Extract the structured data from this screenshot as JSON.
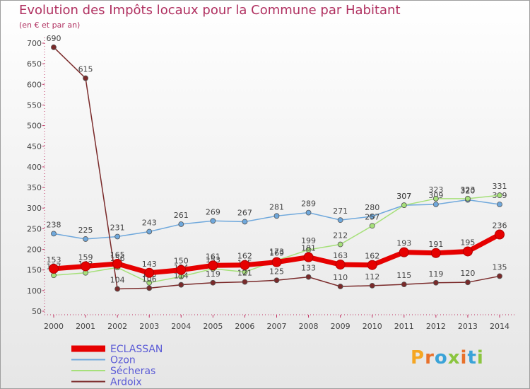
{
  "page": {
    "title": "Evolution des Impôts locaux pour la Commune par Habitant",
    "subtitle": "(en € et par an)"
  },
  "logo": {
    "letters": [
      "P",
      "r",
      "o",
      "x",
      "i",
      "t",
      "i"
    ],
    "colors": [
      "#f5a623",
      "#e8712b",
      "#3aa3d8",
      "#8bc53f",
      "#e8712b",
      "#3aa3d8",
      "#8bc53f"
    ]
  },
  "chart_data": {
    "type": "line",
    "title": "Evolution des Impôts locaux pour la Commune par Habitant",
    "subtitle": "(en € et par an)",
    "xlabel": "",
    "ylabel": "",
    "categories": [
      "2000",
      "2001",
      "2002",
      "2003",
      "2004",
      "2005",
      "2006",
      "2007",
      "2008",
      "2009",
      "2010",
      "2011",
      "2012",
      "2013",
      "2014"
    ],
    "ylim": [
      50,
      700
    ],
    "yticks": [
      50,
      100,
      150,
      200,
      250,
      300,
      350,
      400,
      450,
      500,
      550,
      600,
      650,
      700
    ],
    "grid": false,
    "legend_position": "bottom-left",
    "series": [
      {
        "name": "ECLASSAN",
        "color": "#ff0000",
        "label_color": "#444444",
        "emphasis": true,
        "values": [
          153,
          159,
          165,
          143,
          150,
          161,
          162,
          169,
          181,
          163,
          162,
          193,
          191,
          195,
          236
        ]
      },
      {
        "name": "Ozon",
        "color": "#6fa8dc",
        "label_color": "#444444",
        "emphasis": false,
        "values": [
          238,
          225,
          231,
          243,
          261,
          269,
          267,
          281,
          289,
          271,
          280,
          307,
          309,
          320,
          309
        ]
      },
      {
        "name": "Sécheras",
        "color": "#a6e07a",
        "label_color": "#444444",
        "emphasis": false,
        "values": [
          137,
          143,
          156,
          119,
          134,
          153,
          145,
          173,
          199,
          212,
          257,
          307,
          323,
          323,
          331
        ]
      },
      {
        "name": "Ardoix",
        "color": "#7a2a2a",
        "label_color": "#444444",
        "emphasis": false,
        "values": [
          690,
          615,
          104,
          106,
          114,
          119,
          121,
          125,
          133,
          110,
          112,
          115,
          119,
          120,
          135
        ]
      }
    ]
  }
}
